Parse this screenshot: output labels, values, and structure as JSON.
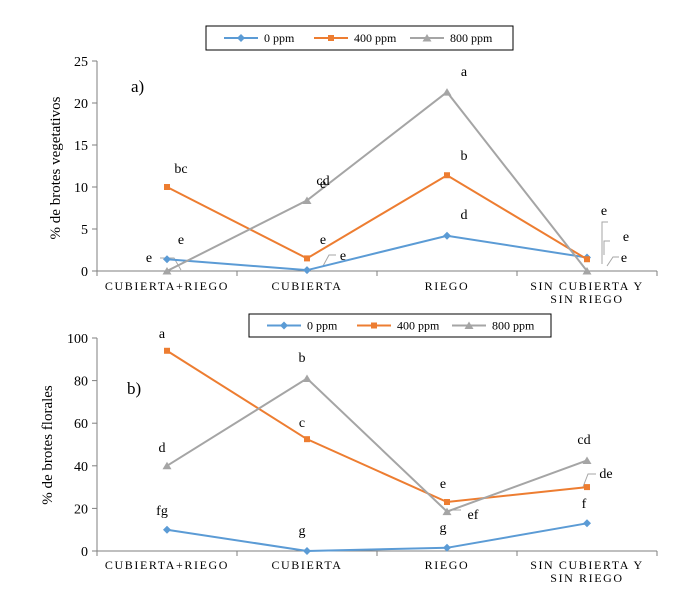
{
  "colors": {
    "s0": "#5b9bd5",
    "s400": "#ed7d31",
    "s800": "#a5a5a5"
  },
  "chart_data": [
    {
      "type": "line",
      "panel_label": "a)",
      "ylabel": "% de brotes vegetativos",
      "xlabel": "",
      "ylim": [
        0,
        25
      ],
      "yticks": [
        "0",
        "5",
        "10",
        "15",
        "20",
        "25"
      ],
      "grid": false,
      "legend_position": "top",
      "categories": [
        "CUBIERTA+RIEGO",
        "CUBIERTA",
        "RIEGO",
        "SIN CUBIERTA Y SIN RIEGO"
      ],
      "series": [
        {
          "name": "0 ppm",
          "marker": "diamond",
          "values": [
            1.4,
            0.1,
            4.2,
            1.6
          ],
          "letters": [
            "e",
            "e",
            "d",
            "e"
          ]
        },
        {
          "name": "400 ppm",
          "marker": "square",
          "values": [
            10.0,
            1.5,
            11.4,
            1.4
          ],
          "letters": [
            "bc",
            "e",
            "b",
            "e"
          ]
        },
        {
          "name": "800 ppm",
          "marker": "triangle",
          "values": [
            0.0,
            8.4,
            21.3,
            0.0
          ],
          "letters": [
            "e",
            "cd",
            "a",
            "e"
          ]
        }
      ]
    },
    {
      "type": "line",
      "panel_label": "b)",
      "ylabel": "% de brotes florales",
      "xlabel": "",
      "ylim": [
        0,
        100
      ],
      "yticks": [
        "0",
        "20",
        "40",
        "60",
        "80",
        "100"
      ],
      "grid": false,
      "legend_position": "top",
      "categories": [
        "CUBIERTA+RIEGO",
        "CUBIERTA",
        "RIEGO",
        "SIN CUBIERTA Y SIN RIEGO"
      ],
      "series": [
        {
          "name": "0 ppm",
          "marker": "diamond",
          "values": [
            10,
            0,
            1.5,
            13
          ],
          "letters": [
            "fg",
            "g",
            "g",
            "f"
          ]
        },
        {
          "name": "400 ppm",
          "marker": "square",
          "values": [
            94,
            52.5,
            23,
            30
          ],
          "letters": [
            "a",
            "c",
            "e",
            "de"
          ]
        },
        {
          "name": "800 ppm",
          "marker": "triangle",
          "values": [
            40,
            81,
            18.5,
            42.5
          ],
          "letters": [
            "d",
            "b",
            "ef",
            "cd"
          ]
        }
      ]
    }
  ]
}
